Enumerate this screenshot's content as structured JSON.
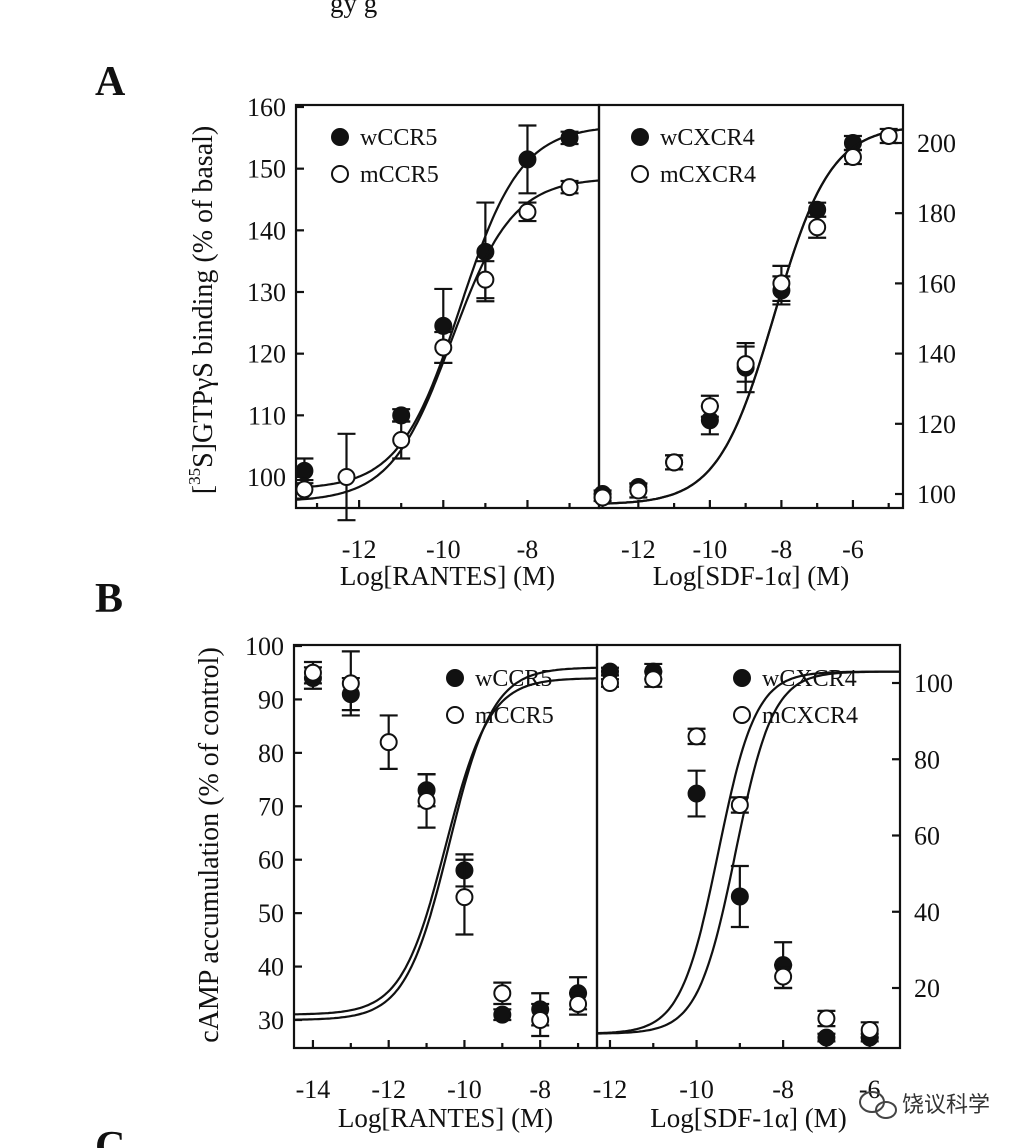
{
  "header_fragment": "gy  g",
  "panel_labels": {
    "A": "A",
    "B": "B",
    "C": "C"
  },
  "watermark": {
    "text": "饶议科学",
    "icon": "wechat-icon"
  },
  "colors": {
    "ink": "#111111",
    "background": "#ffffff"
  },
  "panels": {
    "A": {
      "ylabel_sup": "35",
      "ylabel_rest": "S]GTPγS binding (% of basal)"
    },
    "B": {
      "ylabel": "cAMP accumulation (% of control)"
    }
  },
  "chart_data": [
    {
      "id": "A-left",
      "type": "scatter",
      "xlabel": "Log[RANTES] (M)",
      "ylabel_open": "[",
      "xlim": [
        -13.5,
        -6.3
      ],
      "ylim": [
        95,
        160
      ],
      "xticks": [
        -12,
        -10,
        -8
      ],
      "xtick_labels": [
        "-12",
        "-10",
        "-8"
      ],
      "yticks": [
        100,
        110,
        120,
        130,
        140,
        150,
        160
      ],
      "ytick_labels": [
        "100",
        "110",
        "120",
        "130",
        "140",
        "150",
        "160"
      ],
      "y_axis_side": "left",
      "legend_position": "top-left",
      "series": [
        {
          "name": "wCCR5",
          "marker": "filled",
          "x": [
            -13.3,
            -11,
            -10,
            -9,
            -8,
            -7
          ],
          "y": [
            101,
            110,
            124.5,
            136.5,
            151.5,
            155
          ],
          "err": [
            2,
            1,
            6,
            8,
            5.5,
            1
          ],
          "fit": {
            "bottom": 98,
            "top": 157,
            "logEC50": -9.6,
            "hill": 0.6
          }
        },
        {
          "name": "mCCR5",
          "marker": "open",
          "x": [
            -13.3,
            -12.3,
            -11,
            -10,
            -9,
            -8,
            -7
          ],
          "y": [
            98,
            100,
            106,
            121,
            132,
            143,
            147
          ],
          "err": [
            1.5,
            7,
            3,
            2.5,
            3,
            1.5,
            1
          ],
          "fit": {
            "bottom": 96,
            "top": 148.5,
            "logEC50": -9.8,
            "hill": 0.6
          }
        }
      ]
    },
    {
      "id": "A-right",
      "type": "scatter",
      "xlabel": "Log[SDF-1α] (M)",
      "xlim": [
        -13.1,
        -4.6
      ],
      "ylim": [
        95,
        205
      ],
      "xticks": [
        -12,
        -10,
        -8,
        -6
      ],
      "xtick_labels": [
        "-12",
        "-10",
        "-8",
        "-6"
      ],
      "yticks": [
        100,
        120,
        140,
        160,
        180,
        200
      ],
      "ytick_labels": [
        "100",
        "120",
        "140",
        "160",
        "180",
        "200"
      ],
      "y_axis_side": "right",
      "legend_position": "top-left",
      "series": [
        {
          "name": "wCXCR4",
          "marker": "filled",
          "x": [
            -13,
            -12,
            -11,
            -10,
            -9,
            -8,
            -7,
            -6
          ],
          "y": [
            100,
            102,
            109,
            121,
            136,
            158,
            181,
            200
          ],
          "err": [
            1,
            1,
            2,
            4,
            7,
            4,
            2,
            2
          ],
          "fit": {
            "bottom": 97,
            "top": 205,
            "logEC50": -8.2,
            "hill": 0.55
          }
        },
        {
          "name": "mCXCR4",
          "marker": "open",
          "x": [
            -13,
            -12,
            -11,
            -10,
            -9,
            -8,
            -7,
            -6,
            -5
          ],
          "y": [
            99,
            101,
            109,
            125,
            137,
            160,
            176,
            196,
            202
          ],
          "err": [
            1,
            2,
            2,
            3,
            5,
            5,
            3,
            2,
            2
          ],
          "fit": {
            "bottom": 97,
            "top": 205,
            "logEC50": -8.2,
            "hill": 0.55
          }
        }
      ]
    },
    {
      "id": "B-left",
      "type": "scatter",
      "xlabel": "Log[RANTES] (M)",
      "xlim": [
        -14.5,
        -6.5
      ],
      "ylim": [
        25,
        100
      ],
      "xticks": [
        -14,
        -12,
        -10,
        -8
      ],
      "xtick_labels": [
        "-14",
        "-12",
        "-10",
        "-8"
      ],
      "yticks": [
        30,
        40,
        50,
        60,
        70,
        80,
        90,
        100
      ],
      "ytick_labels": [
        "30",
        "40",
        "50",
        "60",
        "70",
        "80",
        "90",
        "100"
      ],
      "y_axis_side": "left",
      "legend_position": "top-right",
      "series": [
        {
          "name": "wCCR5",
          "marker": "filled",
          "x": [
            -14,
            -13,
            -11,
            -10,
            -9,
            -8,
            -7
          ],
          "y": [
            94,
            91,
            73,
            58,
            31,
            32,
            35
          ],
          "err": [
            2,
            3,
            3,
            3,
            1,
            3,
            3
          ],
          "fit": {
            "bottom": 30,
            "top": 96,
            "logEC50": -10.4,
            "hill": 0.75
          }
        },
        {
          "name": "mCCR5",
          "marker": "open",
          "x": [
            -14,
            -13,
            -12,
            -11,
            -10,
            -9,
            -8,
            -7
          ],
          "y": [
            95,
            93,
            82,
            71,
            53,
            35,
            30,
            33
          ],
          "err": [
            2,
            6,
            5,
            5,
            7,
            2,
            3,
            2
          ],
          "fit": {
            "bottom": 31,
            "top": 94,
            "logEC50": -10.5,
            "hill": 0.75
          }
        }
      ]
    },
    {
      "id": "B-right",
      "type": "scatter",
      "xlabel": "Log[SDF-1α] (M)",
      "xlim": [
        -12.3,
        -5.3
      ],
      "ylim": [
        5,
        110
      ],
      "xticks": [
        -12,
        -10,
        -8,
        -6
      ],
      "xtick_labels": [
        "-12",
        "-10",
        "-8",
        "-6"
      ],
      "yticks": [
        20,
        40,
        60,
        80,
        100
      ],
      "ytick_labels": [
        "20",
        "40",
        "60",
        "80",
        "100"
      ],
      "y_axis_side": "right",
      "legend_position": "top-right",
      "series": [
        {
          "name": "wCXCR4",
          "marker": "filled",
          "x": [
            -12,
            -11,
            -10,
            -9,
            -8,
            -7,
            -6
          ],
          "y": [
            103,
            103,
            71,
            44,
            26,
            7,
            7
          ],
          "err": [
            1,
            2,
            6,
            8,
            6,
            1,
            1
          ],
          "fit": {
            "bottom": 8,
            "top": 103,
            "logEC50": -9.5,
            "hill": 1.0
          }
        },
        {
          "name": "mCXCR4",
          "marker": "open",
          "x": [
            -12,
            -11,
            -10,
            -9,
            -8,
            -7,
            -6
          ],
          "y": [
            100,
            101,
            86,
            68,
            23,
            12,
            9
          ],
          "err": [
            1,
            2,
            2,
            2,
            3,
            2,
            2
          ],
          "fit": {
            "bottom": 8,
            "top": 103,
            "logEC50": -9.1,
            "hill": 1.0
          }
        }
      ]
    }
  ]
}
